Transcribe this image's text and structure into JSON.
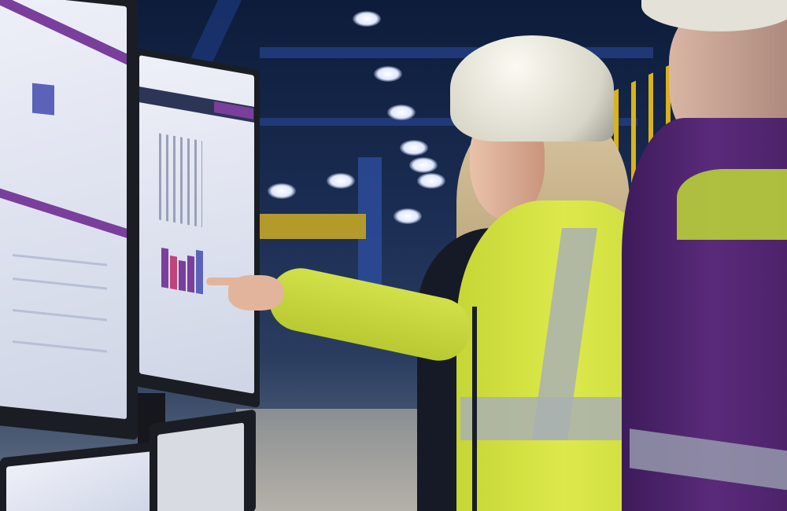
{
  "scene": {
    "description_colors": {
      "background": "#1a2c52",
      "safety_vest": "#d6e83a",
      "reflective_stripe": "#a9b0b3",
      "hard_hat": "#eceae0",
      "jacket_purple": "#5a2a7a",
      "screen_accent": "#7a3f9c",
      "yellow_railing": "#d9b21c"
    }
  }
}
